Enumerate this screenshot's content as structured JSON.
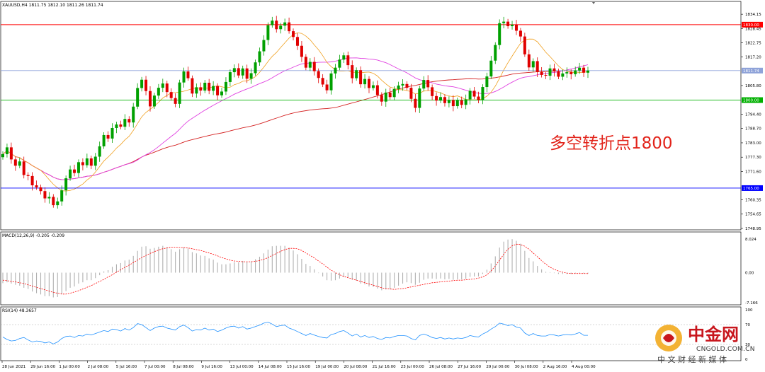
{
  "chart_data": [
    {
      "type": "candlestick",
      "title": "XAUUSD,H4  1811.75 1812.10 1811.26 1811.74",
      "annotation": "多空转折点1800",
      "ylim": [
        1748.95,
        1837
      ],
      "price_ticks": [
        "1834.15",
        "1828.45",
        "1822.75",
        "1817.20",
        "1811.74",
        "1805.80",
        "1800.00",
        "1794.40",
        "1788.70",
        "1783.00",
        "1777.30",
        "1771.60",
        "1765.00",
        "1760.35",
        "1754.65",
        "1748.95"
      ],
      "x_ticks": [
        "28 Jun 2021",
        "29 Jun 16:00",
        "1 Jul 00:00",
        "2 Jul 08:00",
        "5 Jul 16:00",
        "7 Jul 00:00",
        "8 Jul 08:00",
        "9 Jul 16:00",
        "13 Jul 00:00",
        "14 Jul 08:00",
        "15 Jul 16:00",
        "19 Jul 00:00",
        "20 Jul 08:00",
        "21 Jul 16:00",
        "23 Jul 00:00",
        "26 Jul 08:00",
        "27 Jul 16:00",
        "29 Jul 00:00",
        "30 Jul 08:00",
        "2 Aug 16:00",
        "4 Aug 00:00"
      ],
      "horizontal_levels": [
        {
          "price": 1830.0,
          "label": "1830.00",
          "color": "#ff0000"
        },
        {
          "price": 1811.74,
          "label": "1811.74",
          "color": "#8fa3d9"
        },
        {
          "price": 1800.0,
          "label": "1800.00",
          "color": "#00b000"
        },
        {
          "price": 1765.0,
          "label": "1765.00",
          "color": "#0000ff"
        }
      ],
      "up_color": "#00a000",
      "down_color": "#e00000",
      "close": [
        1778.5,
        1781.2,
        1776.4,
        1773.9,
        1775.6,
        1770.2,
        1769.8,
        1766.1,
        1765.3,
        1763.8,
        1760.9,
        1761.5,
        1758.2,
        1759.7,
        1764.1,
        1768.9,
        1772.4,
        1771.0,
        1775.3,
        1774.1,
        1776.8,
        1773.9,
        1777.5,
        1781.6,
        1786.1,
        1784.7,
        1788.9,
        1790.3,
        1789.4,
        1792.5,
        1791.1,
        1797.4,
        1804.8,
        1808.1,
        1803.6,
        1797.5,
        1801.8,
        1804.9,
        1806.6,
        1803.2,
        1800.8,
        1798.5,
        1807.0,
        1811.4,
        1808.7,
        1802.6,
        1805.1,
        1803.8,
        1806.9,
        1803.7,
        1805.6,
        1801.9,
        1803.4,
        1807.2,
        1811.1,
        1812.7,
        1809.8,
        1812.6,
        1808.5,
        1810.7,
        1815.0,
        1819.4,
        1823.9,
        1829.8,
        1831.6,
        1828.2,
        1829.6,
        1830.9,
        1827.4,
        1825.1,
        1821.6,
        1817.2,
        1812.9,
        1815.2,
        1811.5,
        1808.8,
        1806.2,
        1803.9,
        1810.6,
        1812.9,
        1816.1,
        1817.8,
        1813.9,
        1808.7,
        1811.9,
        1806.3,
        1808.4,
        1804.8,
        1805.9,
        1802.0,
        1799.4,
        1803.0,
        1801.2,
        1804.4,
        1805.8,
        1806.4,
        1804.9,
        1800.5,
        1796.9,
        1804.6,
        1808.0,
        1805.1,
        1801.6,
        1799.8,
        1801.2,
        1798.8,
        1800.0,
        1797.6,
        1799.9,
        1798.1,
        1800.3,
        1803.7,
        1801.4,
        1800.1,
        1805.2,
        1809.4,
        1815.7,
        1821.9,
        1830.6,
        1831.2,
        1829.4,
        1830.0,
        1827.6,
        1825.3,
        1818.2,
        1813.0,
        1815.5,
        1811.2,
        1810.0,
        1809.7,
        1812.6,
        1811.4,
        1809.3,
        1810.6,
        1811.1,
        1810.3,
        1811.8,
        1812.9,
        1810.9,
        1811.74
      ]
    },
    {
      "type": "line",
      "title": "MACD(12,26,9) -0.205 -0.209",
      "y_ticks": [
        "8.024",
        "0.00",
        "-7.166"
      ],
      "ylim": [
        -7.166,
        8.024
      ],
      "series": [
        {
          "name": "histogram",
          "color": "#b0b0b0",
          "values": [
            -2.5,
            -2.3,
            -2.6,
            -2.9,
            -3.1,
            -3.6,
            -3.9,
            -4.5,
            -4.9,
            -5.2,
            -5.6,
            -5.6,
            -5.9,
            -5.8,
            -5.1,
            -4.4,
            -3.6,
            -3.3,
            -2.6,
            -2.3,
            -1.8,
            -1.8,
            -1.3,
            -0.6,
            0.3,
            0.6,
            1.4,
            2.0,
            2.3,
            2.9,
            3.1,
            4.0,
            5.2,
            6.2,
            6.3,
            5.7,
            5.9,
            6.2,
            6.4,
            6.1,
            5.6,
            5.0,
            5.6,
            6.1,
            5.8,
            4.9,
            4.6,
            4.1,
            4.0,
            3.4,
            3.1,
            2.4,
            2.0,
            2.0,
            2.2,
            2.5,
            2.5,
            2.8,
            2.5,
            2.7,
            3.2,
            3.8,
            4.6,
            5.5,
            6.3,
            6.4,
            6.4,
            6.4,
            5.9,
            5.3,
            4.4,
            3.3,
            2.1,
            1.6,
            0.8,
            -0.1,
            -0.9,
            -1.8,
            -1.9,
            -1.8,
            -1.4,
            -1.0,
            -1.1,
            -1.7,
            -1.9,
            -2.6,
            -2.8,
            -3.3,
            -3.4,
            -3.8,
            -4.2,
            -4.0,
            -4.0,
            -3.6,
            -3.1,
            -2.6,
            -2.3,
            -2.5,
            -2.9,
            -2.4,
            -1.7,
            -1.4,
            -1.4,
            -1.5,
            -1.4,
            -1.6,
            -1.5,
            -1.7,
            -1.6,
            -1.6,
            -1.5,
            -1.0,
            -0.9,
            -0.9,
            -0.3,
            0.7,
            2.2,
            3.9,
            6.0,
            7.4,
            7.9,
            8.0,
            7.6,
            6.9,
            5.2,
            3.5,
            2.7,
            1.6,
            0.8,
            0.2,
            0.1,
            -0.1,
            -0.3,
            -0.3,
            -0.3,
            -0.3,
            -0.2,
            -0.1,
            -0.2,
            -0.205
          ]
        },
        {
          "name": "signal",
          "color": "#ff0000",
          "values": [
            -1.8,
            -1.9,
            -2.1,
            -2.2,
            -2.4,
            -2.6,
            -2.9,
            -3.2,
            -3.5,
            -3.8,
            -4.1,
            -4.4,
            -4.7,
            -4.9,
            -5.1,
            -5.1,
            -4.9,
            -4.6,
            -4.3,
            -3.9,
            -3.5,
            -3.1,
            -2.6,
            -2.1,
            -1.6,
            -1.0,
            -0.5,
            0.1,
            0.7,
            1.3,
            1.8,
            2.4,
            3.0,
            3.6,
            4.1,
            4.6,
            5.0,
            5.4,
            5.7,
            5.9,
            6.1,
            6.1,
            6.0,
            6.0,
            5.9,
            5.7,
            5.5,
            5.3,
            5.0,
            4.7,
            4.4,
            4.0,
            3.6,
            3.3,
            3.0,
            2.8,
            2.7,
            2.6,
            2.6,
            2.6,
            2.7,
            2.9,
            3.2,
            3.6,
            4.1,
            4.6,
            5.1,
            5.5,
            5.8,
            5.8,
            5.7,
            5.3,
            4.7,
            4.1,
            3.5,
            2.8,
            2.1,
            1.3,
            0.6,
            0.0,
            -0.5,
            -0.9,
            -1.2,
            -1.5,
            -1.8,
            -2.1,
            -2.4,
            -2.7,
            -3.0,
            -3.3,
            -3.6,
            -3.8,
            -3.9,
            -4.0,
            -3.9,
            -3.8,
            -3.6,
            -3.4,
            -3.2,
            -3.0,
            -2.8,
            -2.6,
            -2.4,
            -2.3,
            -2.2,
            -2.1,
            -2.0,
            -1.9,
            -1.8,
            -1.8,
            -1.7,
            -1.6,
            -1.5,
            -1.3,
            -1.0,
            -0.5,
            0.4,
            1.6,
            3.0,
            4.4,
            5.6,
            6.4,
            6.8,
            6.7,
            6.3,
            5.6,
            4.7,
            3.8,
            2.9,
            2.0,
            1.3,
            0.8,
            0.4,
            0.1,
            -0.1,
            -0.2,
            -0.2,
            -0.2,
            -0.2,
            -0.209
          ]
        }
      ]
    },
    {
      "type": "line",
      "title": "RSI(14) 48.3657",
      "y_ticks": [
        "100",
        "70",
        "30",
        "0"
      ],
      "ylim": [
        0,
        100
      ],
      "levels": [
        70,
        30
      ],
      "series": [
        {
          "name": "RSI",
          "color": "#1e90ff",
          "values": [
            45,
            40,
            37,
            38,
            42,
            44,
            39,
            35,
            37,
            36,
            33,
            35,
            31,
            35,
            42,
            46,
            47,
            44,
            48,
            47,
            51,
            49,
            52,
            55,
            58,
            56,
            61,
            60,
            57,
            62,
            59,
            64,
            72,
            70,
            64,
            58,
            63,
            66,
            67,
            63,
            61,
            59,
            66,
            69,
            64,
            57,
            60,
            59,
            63,
            59,
            61,
            56,
            59,
            63,
            66,
            67,
            63,
            66,
            61,
            63,
            66,
            69,
            73,
            75,
            71,
            66,
            68,
            69,
            63,
            60,
            56,
            52,
            48,
            52,
            49,
            46,
            44,
            43,
            50,
            52,
            56,
            58,
            53,
            47,
            51,
            45,
            48,
            44,
            46,
            42,
            40,
            44,
            43,
            46,
            48,
            48,
            47,
            42,
            39,
            48,
            51,
            48,
            44,
            42,
            44,
            41,
            43,
            41,
            43,
            42,
            44,
            48,
            46,
            45,
            51,
            55,
            61,
            66,
            73,
            71,
            68,
            70,
            65,
            63,
            53,
            48,
            52,
            48,
            47,
            47,
            50,
            49,
            47,
            49,
            50,
            49,
            51,
            54,
            48.37,
            48.3657
          ]
        }
      ]
    }
  ],
  "watermark": {
    "name": "中金网",
    "url": "CNGOLD.COM.CN",
    "slogan": "中 文 财 经 新 媒 体"
  }
}
